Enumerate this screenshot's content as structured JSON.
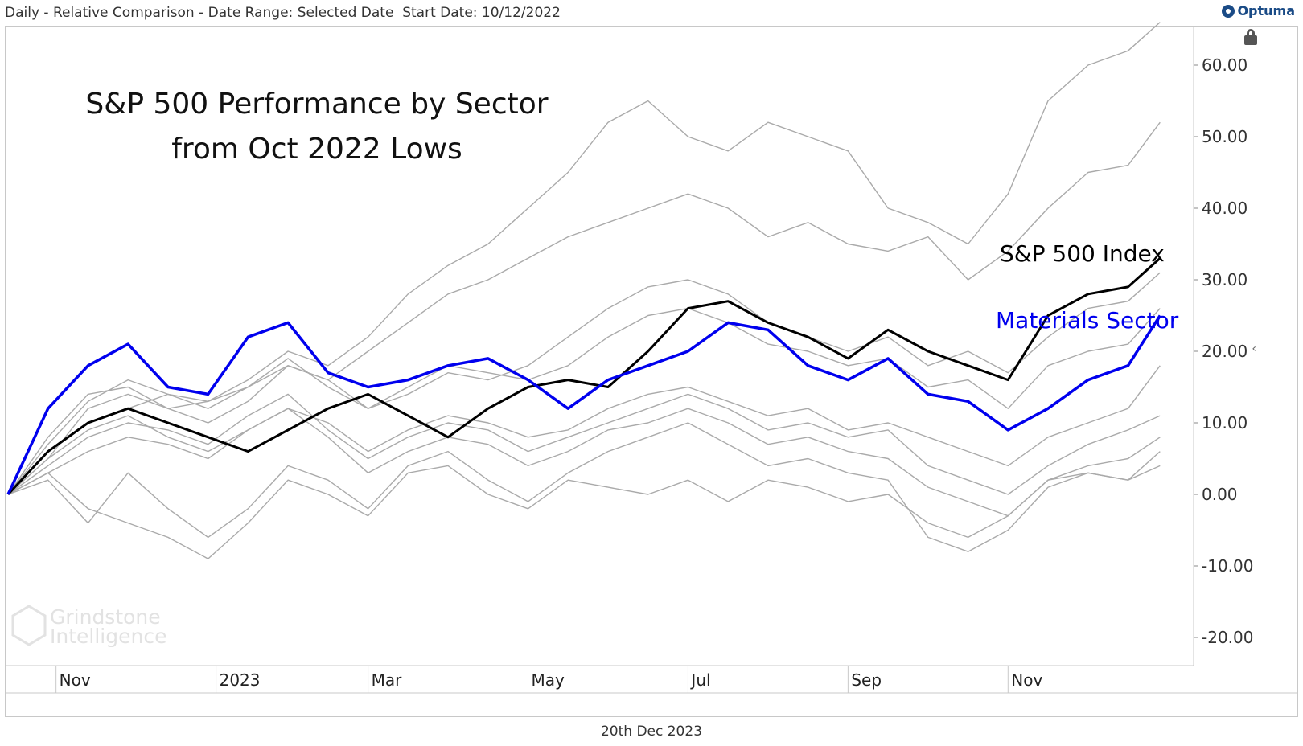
{
  "header": {
    "info": "Daily - Relative Comparison - Date Range: Selected Date  Start Date: 10/12/2022",
    "brand": "Optuma"
  },
  "footer": {
    "date": "20th Dec 2023"
  },
  "watermark": {
    "line1": "Grindstone",
    "line2": "Intelligence"
  },
  "chart_data": {
    "type": "line",
    "title": [
      "S&P 500 Performance by Sector",
      "from Oct 2022 Lows"
    ],
    "ylim": [
      -24,
      66
    ],
    "y_ticks": [
      "60.00",
      "50.00",
      "40.00",
      "30.00",
      "20.00",
      "10.00",
      "0.00",
      "-10.00",
      "-20.00"
    ],
    "y_tick_values": [
      60,
      50,
      40,
      30,
      20,
      10,
      0,
      -10,
      -20
    ],
    "x_ticks": [
      "Nov",
      "2023",
      "Mar",
      "May",
      "Jul",
      "Sep",
      "Nov"
    ],
    "x_tick_positions": [
      0.6,
      2.6,
      4.5,
      6.5,
      8.5,
      10.5,
      12.5
    ],
    "x_range": [
      0,
      14.9
    ],
    "grid": false,
    "series": [
      {
        "name": "S&P 500 Index",
        "color": "#000000",
        "highlight": true,
        "x": [
          0,
          0.5,
          1,
          1.5,
          2,
          2.5,
          3,
          3.5,
          4,
          4.5,
          5,
          5.5,
          6,
          6.5,
          7,
          7.5,
          8,
          8.5,
          9,
          9.5,
          10,
          10.5,
          11,
          11.5,
          12,
          12.5,
          13,
          13.5,
          14,
          14.4
        ],
        "y": [
          0,
          6,
          10,
          12,
          10,
          8,
          6,
          9,
          12,
          14,
          11,
          8,
          12,
          15,
          16,
          15,
          20,
          26,
          27,
          24,
          22,
          19,
          23,
          20,
          18,
          16,
          25,
          28,
          29,
          33
        ]
      },
      {
        "name": "Materials Sector",
        "color": "#0000ee",
        "highlight": true,
        "x": [
          0,
          0.5,
          1,
          1.5,
          2,
          2.5,
          3,
          3.5,
          4,
          4.5,
          5,
          5.5,
          6,
          6.5,
          7,
          7.5,
          8,
          8.5,
          9,
          9.5,
          10,
          10.5,
          11,
          11.5,
          12,
          12.5,
          13,
          13.5,
          14,
          14.4
        ],
        "y": [
          0,
          12,
          18,
          21,
          15,
          14,
          22,
          24,
          17,
          15,
          16,
          18,
          19,
          16,
          12,
          16,
          18,
          20,
          24,
          23,
          18,
          16,
          19,
          14,
          13,
          9,
          12,
          16,
          18,
          25
        ]
      },
      {
        "color": "#aaaaaa",
        "x": [
          0,
          0.5,
          1,
          1.5,
          2,
          2.5,
          3,
          3.5,
          4,
          4.5,
          5,
          5.5,
          6,
          6.5,
          7,
          7.5,
          8,
          8.5,
          9,
          9.5,
          10,
          10.5,
          11,
          11.5,
          12,
          12.5,
          13,
          13.5,
          14,
          14.4
        ],
        "y": [
          0,
          5,
          12,
          14,
          12,
          13,
          16,
          20,
          18,
          22,
          28,
          32,
          35,
          40,
          45,
          52,
          55,
          50,
          48,
          52,
          50,
          48,
          40,
          38,
          35,
          42,
          55,
          60,
          62,
          66
        ]
      },
      {
        "color": "#aaaaaa",
        "x": [
          0,
          0.5,
          1,
          1.5,
          2,
          2.5,
          3,
          3.5,
          4,
          4.5,
          5,
          5.5,
          6,
          6.5,
          7,
          7.5,
          8,
          8.5,
          9,
          9.5,
          10,
          10.5,
          11,
          11.5,
          12,
          12.5,
          13,
          13.5,
          14,
          14.4
        ],
        "y": [
          0,
          6,
          10,
          12,
          14,
          13,
          15,
          18,
          16,
          20,
          24,
          28,
          30,
          33,
          36,
          38,
          40,
          42,
          40,
          36,
          38,
          35,
          34,
          36,
          30,
          34,
          40,
          45,
          46,
          52
        ]
      },
      {
        "color": "#aaaaaa",
        "x": [
          0,
          0.5,
          1,
          1.5,
          2,
          2.5,
          3,
          3.5,
          4,
          4.5,
          5,
          5.5,
          6,
          6.5,
          7,
          7.5,
          8,
          8.5,
          9,
          9.5,
          10,
          10.5,
          11,
          11.5,
          12,
          12.5,
          13,
          13.5,
          14,
          14.4
        ],
        "y": [
          0,
          8,
          14,
          15,
          12,
          10,
          13,
          18,
          16,
          12,
          14,
          17,
          16,
          18,
          22,
          26,
          29,
          30,
          28,
          24,
          22,
          20,
          22,
          18,
          20,
          17,
          22,
          26,
          27,
          31
        ]
      },
      {
        "color": "#aaaaaa",
        "x": [
          0,
          0.5,
          1,
          1.5,
          2,
          2.5,
          3,
          3.5,
          4,
          4.5,
          5,
          5.5,
          6,
          6.5,
          7,
          7.5,
          8,
          8.5,
          9,
          9.5,
          10,
          10.5,
          11,
          11.5,
          12,
          12.5,
          13,
          13.5,
          14,
          14.4
        ],
        "y": [
          0,
          7,
          13,
          16,
          14,
          12,
          15,
          19,
          15,
          12,
          15,
          18,
          17,
          16,
          18,
          22,
          25,
          26,
          24,
          21,
          20,
          18,
          19,
          15,
          16,
          12,
          18,
          20,
          21,
          26
        ]
      },
      {
        "color": "#aaaaaa",
        "x": [
          0,
          0.5,
          1,
          1.5,
          2,
          2.5,
          3,
          3.5,
          4,
          4.5,
          5,
          5.5,
          6,
          6.5,
          7,
          7.5,
          8,
          8.5,
          9,
          9.5,
          10,
          10.5,
          11,
          11.5,
          12,
          12.5,
          13,
          13.5,
          14,
          14.4
        ],
        "y": [
          0,
          5,
          9,
          11,
          8,
          6,
          9,
          12,
          10,
          6,
          9,
          11,
          10,
          8,
          9,
          12,
          14,
          15,
          13,
          11,
          12,
          9,
          10,
          8,
          6,
          4,
          8,
          10,
          12,
          18
        ]
      },
      {
        "color": "#aaaaaa",
        "x": [
          0,
          0.5,
          1,
          1.5,
          2,
          2.5,
          3,
          3.5,
          4,
          4.5,
          5,
          5.5,
          6,
          6.5,
          7,
          7.5,
          8,
          8.5,
          9,
          9.5,
          10,
          10.5,
          11,
          11.5,
          12,
          12.5,
          13,
          13.5,
          14,
          14.4
        ],
        "y": [
          0,
          4,
          8,
          10,
          9,
          7,
          11,
          14,
          9,
          5,
          8,
          10,
          9,
          6,
          8,
          10,
          12,
          14,
          12,
          9,
          10,
          8,
          9,
          4,
          2,
          0,
          4,
          7,
          9,
          11
        ]
      },
      {
        "color": "#aaaaaa",
        "x": [
          0,
          0.5,
          1,
          1.5,
          2,
          2.5,
          3,
          3.5,
          4,
          4.5,
          5,
          5.5,
          6,
          6.5,
          7,
          7.5,
          8,
          8.5,
          9,
          9.5,
          10,
          10.5,
          11,
          11.5,
          12,
          12.5,
          13,
          13.5,
          14,
          14.4
        ],
        "y": [
          0,
          3,
          6,
          8,
          7,
          5,
          9,
          12,
          8,
          3,
          6,
          8,
          7,
          4,
          6,
          9,
          10,
          12,
          10,
          7,
          8,
          6,
          5,
          1,
          -1,
          -3,
          2,
          4,
          5,
          8
        ]
      },
      {
        "color": "#aaaaaa",
        "x": [
          0,
          0.5,
          1,
          1.5,
          2,
          2.5,
          3,
          3.5,
          4,
          4.5,
          5,
          5.5,
          6,
          6.5,
          7,
          7.5,
          8,
          8.5,
          9,
          9.5,
          10,
          10.5,
          11,
          11.5,
          12,
          12.5,
          13,
          13.5,
          14,
          14.4
        ],
        "y": [
          0,
          2,
          -4,
          3,
          -2,
          -6,
          -2,
          4,
          2,
          -2,
          4,
          6,
          2,
          -1,
          3,
          6,
          8,
          10,
          7,
          4,
          5,
          3,
          2,
          -6,
          -8,
          -5,
          1,
          3,
          2,
          6
        ]
      },
      {
        "color": "#aaaaaa",
        "x": [
          0,
          0.5,
          1,
          1.5,
          2,
          2.5,
          3,
          3.5,
          4,
          4.5,
          5,
          5.5,
          6,
          6.5,
          7,
          7.5,
          8,
          8.5,
          9,
          9.5,
          10,
          10.5,
          11,
          11.5,
          12,
          12.5,
          13,
          13.5,
          14,
          14.4
        ],
        "y": [
          0,
          3,
          -2,
          -4,
          -6,
          -9,
          -4,
          2,
          0,
          -3,
          3,
          4,
          0,
          -2,
          2,
          1,
          0,
          2,
          -1,
          2,
          1,
          -1,
          0,
          -4,
          -6,
          -3,
          2,
          3,
          2,
          4
        ]
      }
    ],
    "labels": [
      {
        "text": "S&P 500 Index",
        "color": "#000000"
      },
      {
        "text": "Materials Sector",
        "color": "#0000ee"
      }
    ]
  }
}
